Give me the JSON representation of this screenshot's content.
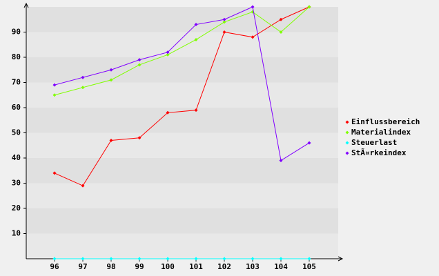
{
  "chart_data": {
    "type": "line",
    "categories": [
      "96",
      "97",
      "98",
      "99",
      "100",
      "101",
      "102",
      "103",
      "104",
      "105"
    ],
    "series": [
      {
        "name": "Einflussbereich",
        "color": "#ff0000",
        "values": [
          34,
          29,
          47,
          48,
          58,
          59,
          90,
          88,
          95,
          100
        ]
      },
      {
        "name": "Materialindex",
        "color": "#80ff00",
        "values": [
          65,
          68,
          71,
          77,
          81,
          87,
          94,
          98,
          90,
          100
        ]
      },
      {
        "name": "Steuerlast",
        "color": "#00ffff",
        "values": [
          0,
          0,
          0,
          0,
          0,
          0,
          0,
          0,
          0,
          0
        ]
      },
      {
        "name": "StÃ¤rkeindex",
        "color": "#8000ff",
        "values": [
          69,
          72,
          75,
          79,
          82,
          93,
          95,
          100,
          39,
          46
        ]
      }
    ],
    "ylim": [
      0,
      100
    ],
    "yticks": [
      10,
      20,
      30,
      40,
      50,
      60,
      70,
      80,
      90
    ],
    "grid": true,
    "legend": "right"
  }
}
